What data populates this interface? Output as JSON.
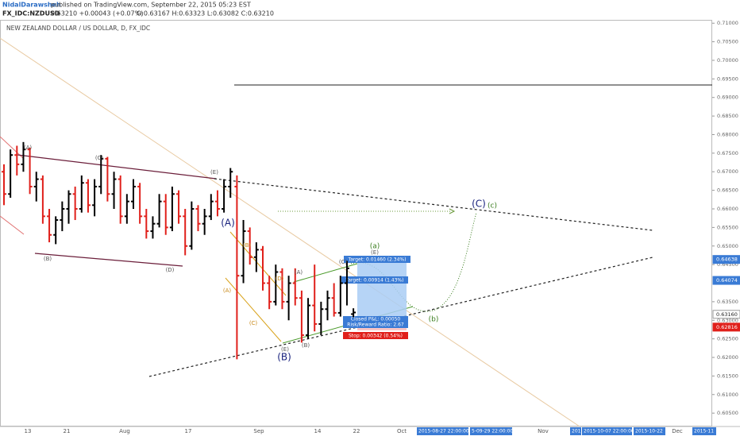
{
  "header": {
    "author": "NidalDarawsheh",
    "published": "published on TradingView.com, September 22, 2015 05:23 EST",
    "symbol": "FX_IDC:NZDUSD",
    "quote": "0.63210 +0.00043 (+0.07%)",
    "ohlc": "O:0.63167 H:0.63323 L:0.63082 C:0.63210"
  },
  "chart_data": {
    "type": "ohlc",
    "title": "NEW ZEALAND DOLLAR / US DOLLAR, D, FX_IDC",
    "up_color": "#000000",
    "down_color": "#e0201b",
    "ylim": [
      0.6014,
      0.7109
    ],
    "yticks": [
      {
        "value": 0.605,
        "label": "0.60500"
      },
      {
        "value": 0.61,
        "label": "0.61000"
      },
      {
        "value": 0.615,
        "label": "0.61500"
      },
      {
        "value": 0.62,
        "label": "0.62000"
      },
      {
        "value": 0.625,
        "label": "0.62500"
      },
      {
        "value": 0.63,
        "label": "0.63000"
      },
      {
        "value": 0.635,
        "label": "0.63500"
      },
      {
        "value": 0.645,
        "label": "0.64500"
      },
      {
        "value": 0.65,
        "label": "0.65000"
      },
      {
        "value": 0.655,
        "label": "0.65500"
      },
      {
        "value": 0.66,
        "label": "0.66000"
      },
      {
        "value": 0.665,
        "label": "0.66500"
      },
      {
        "value": 0.67,
        "label": "0.67000"
      },
      {
        "value": 0.675,
        "label": "0.67500"
      },
      {
        "value": 0.68,
        "label": "0.68000"
      },
      {
        "value": 0.685,
        "label": "0.68500"
      },
      {
        "value": 0.69,
        "label": "0.69000"
      },
      {
        "value": 0.695,
        "label": "0.69500"
      },
      {
        "value": 0.7,
        "label": "0.70000"
      },
      {
        "value": 0.705,
        "label": "0.70500"
      },
      {
        "value": 0.71,
        "label": "0.71000"
      }
    ],
    "price_markers": [
      {
        "value": 0.64638,
        "color": "#3a7bd5"
      },
      {
        "value": 0.64074,
        "color": "#3a7bd5"
      },
      {
        "value": 0.6316,
        "label": "0.63160",
        "color": "#ffffff"
      },
      {
        "value": 0.62816,
        "color": "#e0201b"
      }
    ],
    "x_labels": [
      "13",
      "21",
      "Aug",
      "17",
      "Sep",
      "14",
      "22",
      "Oct",
      "Nov",
      "Dec"
    ],
    "date_labels": [
      "2015-08-27 22:00:00",
      "5-09-29 22:00:00",
      "201",
      "2015-10-07 22:00:00",
      "2015-10-22",
      "2015-11"
    ],
    "open": [
      0.67,
      0.664,
      0.6745,
      0.672,
      0.676,
      0.666,
      0.668,
      0.658,
      0.653,
      0.657,
      0.66,
      0.664,
      0.66,
      0.667,
      0.661,
      0.666,
      0.6735,
      0.664,
      0.668,
      0.658,
      0.662,
      0.666,
      0.658,
      0.654,
      0.656,
      0.662,
      0.655,
      0.664,
      0.658,
      0.65,
      0.66,
      0.656,
      0.658,
      0.662,
      0.66,
      0.666,
      0.666,
      0.642,
      0.654,
      0.647,
      0.649,
      0.64,
      0.635,
      0.643,
      0.635,
      0.64,
      0.636,
      0.626,
      0.634,
      0.629,
      0.633,
      0.636,
      0.632,
      0.64,
      0.63167
    ],
    "high": [
      0.672,
      0.676,
      0.677,
      0.678,
      0.6765,
      0.67,
      0.669,
      0.66,
      0.658,
      0.662,
      0.665,
      0.666,
      0.669,
      0.668,
      0.668,
      0.6745,
      0.674,
      0.67,
      0.669,
      0.664,
      0.668,
      0.667,
      0.66,
      0.658,
      0.664,
      0.664,
      0.666,
      0.665,
      0.66,
      0.662,
      0.661,
      0.66,
      0.664,
      0.665,
      0.668,
      0.671,
      0.669,
      0.657,
      0.655,
      0.651,
      0.65,
      0.642,
      0.645,
      0.644,
      0.642,
      0.644,
      0.638,
      0.636,
      0.645,
      0.635,
      0.638,
      0.64,
      0.642,
      0.646,
      0.63323
    ],
    "low": [
      0.661,
      0.663,
      0.669,
      0.67,
      0.664,
      0.662,
      0.656,
      0.651,
      0.6505,
      0.654,
      0.656,
      0.657,
      0.659,
      0.659,
      0.658,
      0.664,
      0.662,
      0.66,
      0.656,
      0.656,
      0.66,
      0.656,
      0.652,
      0.652,
      0.655,
      0.653,
      0.654,
      0.656,
      0.6475,
      0.649,
      0.654,
      0.653,
      0.657,
      0.658,
      0.659,
      0.663,
      0.6195,
      0.64,
      0.645,
      0.643,
      0.638,
      0.633,
      0.634,
      0.633,
      0.63,
      0.634,
      0.624,
      0.625,
      0.627,
      0.626,
      0.63,
      0.631,
      0.631,
      0.634,
      0.63082
    ],
    "close": [
      0.664,
      0.6745,
      0.672,
      0.676,
      0.666,
      0.668,
      0.658,
      0.653,
      0.657,
      0.66,
      0.664,
      0.66,
      0.667,
      0.661,
      0.666,
      0.6735,
      0.664,
      0.668,
      0.658,
      0.662,
      0.666,
      0.658,
      0.654,
      0.656,
      0.662,
      0.655,
      0.664,
      0.658,
      0.65,
      0.66,
      0.656,
      0.658,
      0.662,
      0.66,
      0.666,
      0.67,
      0.642,
      0.654,
      0.647,
      0.649,
      0.64,
      0.635,
      0.643,
      0.635,
      0.64,
      0.636,
      0.626,
      0.634,
      0.629,
      0.633,
      0.636,
      0.632,
      0.64,
      0.644,
      0.6321
    ],
    "annotations": [
      {
        "text": "(A)",
        "color": "#555"
      },
      {
        "text": "(C)",
        "color": "#555"
      },
      {
        "text": "(E)",
        "color": "#555"
      },
      {
        "text": "(B)",
        "color": "#555"
      },
      {
        "text": "(D)",
        "color": "#555"
      },
      {
        "text": "(A)",
        "color": "#1a237e"
      },
      {
        "text": "(B)",
        "color": "#1a237e"
      },
      {
        "text": "(C)",
        "color": "#1a237e"
      },
      {
        "text": "(c)",
        "color": "#3a7d1e"
      },
      {
        "text": "(a)",
        "color": "#3a7d1e"
      },
      {
        "text": "(b)",
        "color": "#3a7d1e"
      },
      {
        "text": "(B)",
        "color": "#c98a1a"
      },
      {
        "text": "(D)",
        "color": "#c98a1a"
      },
      {
        "text": "(C)",
        "color": "#c98a1a"
      },
      {
        "text": "(A)",
        "color": "#c98a1a"
      },
      {
        "text": "(A)",
        "color": "#555"
      },
      {
        "text": "(C)",
        "color": "#555"
      },
      {
        "text": "(E)",
        "color": "#555"
      },
      {
        "text": "(B)",
        "color": "#555"
      },
      {
        "text": "(E)",
        "color": "#555"
      }
    ],
    "position_tool": {
      "target1": "Target: 0.01460 (2.34%)",
      "target2": "Target: 0.00914 (1.43%)",
      "pnl": "Closed P&L: 0.00050",
      "rr": "Risk/Reward Ratio: 2.67",
      "stop": "Stop: 0.00342 (0.54%)"
    }
  }
}
